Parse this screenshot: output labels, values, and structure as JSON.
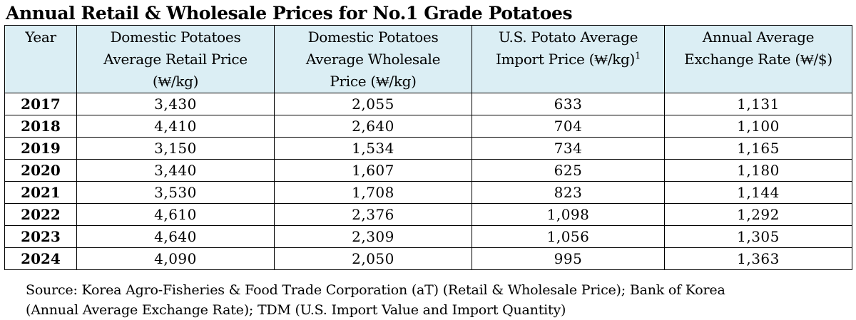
{
  "title": "Annual Retail & Wholesale Prices for No.1 Grade Potatoes",
  "table": {
    "headers": [
      {
        "lines": [
          "Year"
        ]
      },
      {
        "lines": [
          "Domestic Potatoes",
          "Average Retail Price",
          "(₩/kg)"
        ]
      },
      {
        "lines": [
          "Domestic Potatoes",
          "Average Wholesale",
          "Price (₩/kg)"
        ]
      },
      {
        "lines": [
          "U.S. Potato Average",
          "Import Price (₩/kg)"
        ],
        "footnote": "1"
      },
      {
        "lines": [
          "Annual Average",
          "Exchange Rate (₩/$)"
        ]
      }
    ],
    "rows": [
      {
        "year": "2017",
        "retail": "3,430",
        "wholesale": "2,055",
        "import": "633",
        "exchange": "1,131"
      },
      {
        "year": "2018",
        "retail": "4,410",
        "wholesale": "2,640",
        "import": "704",
        "exchange": "1,100"
      },
      {
        "year": "2019",
        "retail": "3,150",
        "wholesale": "1,534",
        "import": "734",
        "exchange": "1,165"
      },
      {
        "year": "2020",
        "retail": "3,440",
        "wholesale": "1,607",
        "import": "625",
        "exchange": "1,180"
      },
      {
        "year": "2021",
        "retail": "3,530",
        "wholesale": "1,708",
        "import": "823",
        "exchange": "1,144"
      },
      {
        "year": "2022",
        "retail": "4,610",
        "wholesale": "2,376",
        "import": "1,098",
        "exchange": "1,292"
      },
      {
        "year": "2023",
        "retail": "4,640",
        "wholesale": "2,309",
        "import": "1,056",
        "exchange": "1,305"
      },
      {
        "year": "2024",
        "retail": "4,090",
        "wholesale": "2,050",
        "import": "995",
        "exchange": "1,363"
      }
    ]
  },
  "source": {
    "lines": [
      "Source: Korea Agro-Fisheries & Food Trade Corporation (aT) (Retail & Wholesale Price); Bank of Korea",
      "(Annual Average Exchange Rate); TDM (U.S. Import Value and Import Quantity)"
    ]
  },
  "colors": {
    "header_background": "#dbeef4",
    "border": "#000000",
    "text": "#000000"
  }
}
